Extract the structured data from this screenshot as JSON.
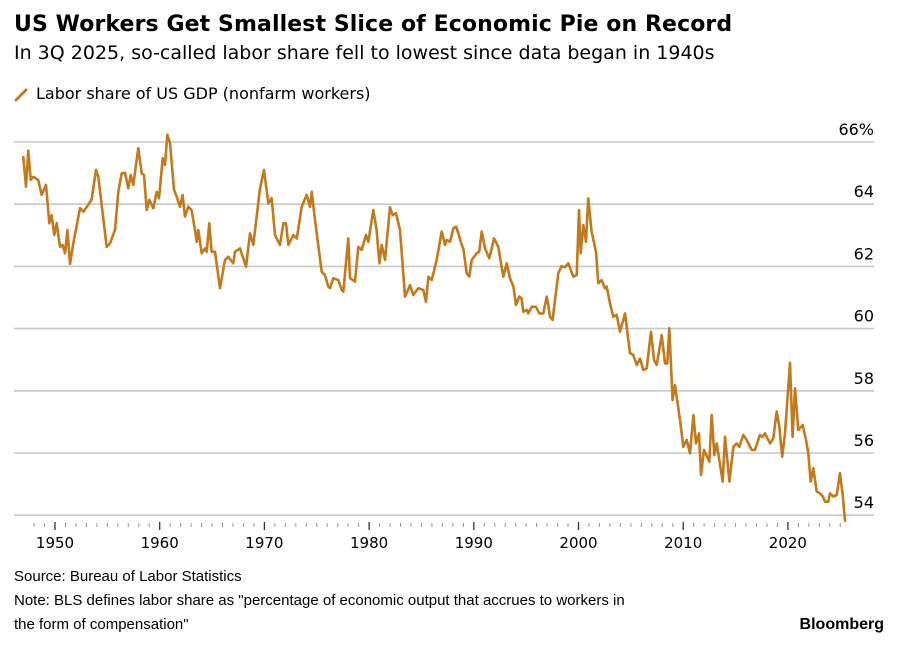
{
  "title": "US Workers Get Smallest Slice of Economic Pie on Record",
  "subtitle": "In 3Q 2025, so-called labor share fell to lowest since data began in 1940s",
  "source": "Source: Bureau of Labor Statistics",
  "note_line1": "Note: BLS defines labor share as \"percentage of economic output that accrues to workers in",
  "note_line2": "the form of compensation\"",
  "brand": "Bloomberg",
  "colors": {
    "series": "#c27a1c",
    "grid": "#c8c8c8"
  },
  "chart_data": {
    "type": "line",
    "title": "US Workers Get Smallest Slice of Economic Pie on Record",
    "xlabel": "",
    "ylabel": "",
    "xlim": [
      1946.7,
      2026
    ],
    "ylim": [
      54,
      66
    ],
    "y_unit_suffix": "%",
    "y_axis_position": "right",
    "grid": true,
    "legend_position": "top-left",
    "x_ticks": [
      "1950",
      "1960",
      "1970",
      "1980",
      "1990",
      "2000",
      "2010",
      "2020"
    ],
    "y_ticks": [
      "66%",
      "64",
      "62",
      "60",
      "58",
      "56",
      "54"
    ],
    "series": [
      {
        "name": "Labor share of US GDP (nonfarm workers)",
        "points": [
          [
            1946.97,
            65.51
          ],
          [
            1947.23,
            64.56
          ],
          [
            1947.45,
            65.72
          ],
          [
            1947.68,
            64.78
          ],
          [
            1947.93,
            64.88
          ],
          [
            1948.4,
            64.78
          ],
          [
            1948.73,
            64.3
          ],
          [
            1949.14,
            64.62
          ],
          [
            1949.46,
            63.39
          ],
          [
            1949.68,
            63.65
          ],
          [
            1949.93,
            63.01
          ],
          [
            1950.16,
            63.39
          ],
          [
            1950.48,
            62.63
          ],
          [
            1950.73,
            62.69
          ],
          [
            1950.96,
            62.42
          ],
          [
            1951.18,
            63.17
          ],
          [
            1951.43,
            62.08
          ],
          [
            1951.75,
            62.74
          ],
          [
            1952.39,
            63.87
          ],
          [
            1952.71,
            63.76
          ],
          [
            1953.5,
            64.14
          ],
          [
            1953.92,
            65.1
          ],
          [
            1954.14,
            64.88
          ],
          [
            1954.94,
            62.63
          ],
          [
            1955.25,
            62.74
          ],
          [
            1955.73,
            63.17
          ],
          [
            1956.05,
            64.4
          ],
          [
            1956.37,
            64.99
          ],
          [
            1956.69,
            65.01
          ],
          [
            1957.0,
            64.51
          ],
          [
            1957.23,
            64.94
          ],
          [
            1957.48,
            64.62
          ],
          [
            1957.96,
            65.8
          ],
          [
            1958.28,
            64.99
          ],
          [
            1958.5,
            64.94
          ],
          [
            1958.76,
            63.81
          ],
          [
            1959.01,
            64.14
          ],
          [
            1959.39,
            63.87
          ],
          [
            1959.71,
            64.4
          ],
          [
            1959.93,
            64.19
          ],
          [
            1960.29,
            65.48
          ],
          [
            1960.51,
            65.26
          ],
          [
            1960.73,
            66.23
          ],
          [
            1960.98,
            65.96
          ],
          [
            1961.37,
            64.46
          ],
          [
            1961.62,
            64.24
          ],
          [
            1961.94,
            63.92
          ],
          [
            1962.19,
            64.3
          ],
          [
            1962.42,
            63.6
          ],
          [
            1962.73,
            63.92
          ],
          [
            1963.05,
            63.81
          ],
          [
            1963.37,
            63.17
          ],
          [
            1963.53,
            62.79
          ],
          [
            1963.69,
            63.17
          ],
          [
            1964.01,
            62.42
          ],
          [
            1964.33,
            62.58
          ],
          [
            1964.49,
            62.47
          ],
          [
            1964.74,
            63.39
          ],
          [
            1964.96,
            62.47
          ],
          [
            1965.28,
            62.47
          ],
          [
            1965.76,
            61.3
          ],
          [
            1966.24,
            62.21
          ],
          [
            1966.55,
            62.31
          ],
          [
            1967.03,
            62.1
          ],
          [
            1967.19,
            62.47
          ],
          [
            1967.67,
            62.58
          ],
          [
            1968.24,
            61.99
          ],
          [
            1968.62,
            63.06
          ],
          [
            1968.94,
            62.69
          ],
          [
            1969.58,
            64.51
          ],
          [
            1969.96,
            65.1
          ],
          [
            1970.37,
            64.03
          ],
          [
            1970.7,
            64.19
          ],
          [
            1971.01,
            63.01
          ],
          [
            1971.49,
            62.69
          ],
          [
            1971.81,
            63.39
          ],
          [
            1972.06,
            63.39
          ],
          [
            1972.28,
            62.69
          ],
          [
            1972.76,
            63.01
          ],
          [
            1973.09,
            62.9
          ],
          [
            1973.56,
            63.92
          ],
          [
            1974.04,
            64.3
          ],
          [
            1974.36,
            63.92
          ],
          [
            1974.52,
            64.4
          ],
          [
            1974.83,
            63.49
          ],
          [
            1975.47,
            61.83
          ],
          [
            1975.79,
            61.72
          ],
          [
            1976.1,
            61.35
          ],
          [
            1976.27,
            61.3
          ],
          [
            1976.58,
            61.62
          ],
          [
            1977.06,
            61.56
          ],
          [
            1977.38,
            61.24
          ],
          [
            1977.54,
            61.19
          ],
          [
            1978.01,
            62.9
          ],
          [
            1978.18,
            61.62
          ],
          [
            1978.65,
            61.51
          ],
          [
            1978.97,
            62.63
          ],
          [
            1979.29,
            62.53
          ],
          [
            1979.7,
            63.01
          ],
          [
            1979.92,
            62.79
          ],
          [
            1980.4,
            63.81
          ],
          [
            1980.72,
            63.17
          ],
          [
            1980.98,
            62.1
          ],
          [
            1981.2,
            62.69
          ],
          [
            1981.52,
            62.21
          ],
          [
            1982.0,
            63.9
          ],
          [
            1982.25,
            63.65
          ],
          [
            1982.57,
            63.71
          ],
          [
            1982.95,
            63.17
          ],
          [
            1983.43,
            61.03
          ],
          [
            1983.91,
            61.4
          ],
          [
            1984.22,
            61.08
          ],
          [
            1984.7,
            61.3
          ],
          [
            1985.18,
            61.24
          ],
          [
            1985.43,
            60.86
          ],
          [
            1985.66,
            61.67
          ],
          [
            1985.98,
            61.56
          ],
          [
            1986.46,
            62.21
          ],
          [
            1986.93,
            63.12
          ],
          [
            1987.25,
            62.69
          ],
          [
            1987.41,
            62.85
          ],
          [
            1987.73,
            62.79
          ],
          [
            1988.04,
            63.22
          ],
          [
            1988.3,
            63.28
          ],
          [
            1988.52,
            63.06
          ],
          [
            1988.84,
            62.69
          ],
          [
            1989.0,
            62.58
          ],
          [
            1989.32,
            61.78
          ],
          [
            1989.57,
            61.67
          ],
          [
            1989.8,
            62.21
          ],
          [
            1990.28,
            62.42
          ],
          [
            1990.52,
            62.47
          ],
          [
            1990.75,
            63.12
          ],
          [
            1991.07,
            62.58
          ],
          [
            1991.48,
            62.26
          ],
          [
            1991.93,
            62.9
          ],
          [
            1992.34,
            62.63
          ],
          [
            1992.82,
            61.67
          ],
          [
            1993.14,
            62.1
          ],
          [
            1993.46,
            61.62
          ],
          [
            1993.78,
            61.35
          ],
          [
            1994.03,
            60.76
          ],
          [
            1994.35,
            61.03
          ],
          [
            1994.57,
            60.97
          ],
          [
            1994.73,
            60.54
          ],
          [
            1995.05,
            60.6
          ],
          [
            1995.21,
            60.49
          ],
          [
            1995.53,
            60.7
          ],
          [
            1995.94,
            60.7
          ],
          [
            1996.26,
            60.49
          ],
          [
            1996.64,
            60.49
          ],
          [
            1996.96,
            61.03
          ],
          [
            1997.12,
            60.76
          ],
          [
            1997.28,
            60.38
          ],
          [
            1997.53,
            60.28
          ],
          [
            1998.07,
            61.78
          ],
          [
            1998.39,
            62.01
          ],
          [
            1998.71,
            61.97
          ],
          [
            1999.03,
            62.1
          ],
          [
            1999.5,
            61.67
          ],
          [
            1999.83,
            61.72
          ],
          [
            2000.05,
            63.81
          ],
          [
            2000.21,
            62.42
          ],
          [
            2000.46,
            63.33
          ],
          [
            2000.72,
            62.79
          ],
          [
            2000.93,
            64.19
          ],
          [
            2001.25,
            63.12
          ],
          [
            2001.67,
            62.47
          ],
          [
            2001.89,
            61.46
          ],
          [
            2002.21,
            61.56
          ],
          [
            2002.53,
            61.3
          ],
          [
            2002.69,
            61.35
          ],
          [
            2003.01,
            60.81
          ],
          [
            2003.32,
            60.38
          ],
          [
            2003.65,
            60.44
          ],
          [
            2003.96,
            59.9
          ],
          [
            2004.44,
            60.49
          ],
          [
            2004.92,
            59.21
          ],
          [
            2005.23,
            59.15
          ],
          [
            2005.56,
            58.83
          ],
          [
            2005.87,
            59.04
          ],
          [
            2006.19,
            58.67
          ],
          [
            2006.51,
            58.72
          ],
          [
            2006.92,
            59.9
          ],
          [
            2007.21,
            58.99
          ],
          [
            2007.47,
            58.83
          ],
          [
            2007.95,
            59.79
          ],
          [
            2008.26,
            58.88
          ],
          [
            2008.48,
            58.88
          ],
          [
            2008.67,
            60.01
          ],
          [
            2008.99,
            57.7
          ],
          [
            2009.22,
            58.19
          ],
          [
            2009.69,
            57.06
          ],
          [
            2010.01,
            56.2
          ],
          [
            2010.33,
            56.42
          ],
          [
            2010.65,
            55.99
          ],
          [
            2010.97,
            57.22
          ],
          [
            2011.22,
            56.31
          ],
          [
            2011.51,
            56.63
          ],
          [
            2011.7,
            55.29
          ],
          [
            2011.99,
            56.1
          ],
          [
            2012.49,
            55.72
          ],
          [
            2012.72,
            57.22
          ],
          [
            2012.97,
            55.94
          ],
          [
            2013.2,
            56.31
          ],
          [
            2013.77,
            55.08
          ],
          [
            2013.99,
            56.52
          ],
          [
            2014.41,
            55.08
          ],
          [
            2014.79,
            56.2
          ],
          [
            2015.11,
            56.31
          ],
          [
            2015.36,
            56.2
          ],
          [
            2015.74,
            56.58
          ],
          [
            2016.06,
            56.42
          ],
          [
            2016.54,
            56.1
          ],
          [
            2016.86,
            56.1
          ],
          [
            2017.33,
            56.58
          ],
          [
            2017.59,
            56.52
          ],
          [
            2017.81,
            56.63
          ],
          [
            2018.29,
            56.31
          ],
          [
            2018.61,
            56.47
          ],
          [
            2018.93,
            57.33
          ],
          [
            2019.18,
            56.85
          ],
          [
            2019.46,
            55.88
          ],
          [
            2019.72,
            56.63
          ],
          [
            2020.2,
            58.9
          ],
          [
            2020.45,
            56.52
          ],
          [
            2020.68,
            58.08
          ],
          [
            2020.99,
            56.74
          ],
          [
            2021.41,
            56.9
          ],
          [
            2021.73,
            56.42
          ],
          [
            2021.95,
            55.99
          ],
          [
            2022.18,
            55.08
          ],
          [
            2022.43,
            55.51
          ],
          [
            2022.75,
            54.76
          ],
          [
            2023.07,
            54.7
          ],
          [
            2023.33,
            54.6
          ],
          [
            2023.55,
            54.43
          ],
          [
            2023.86,
            54.43
          ],
          [
            2024.02,
            54.7
          ],
          [
            2024.34,
            54.6
          ],
          [
            2024.66,
            54.65
          ],
          [
            2024.98,
            55.35
          ],
          [
            2025.23,
            54.65
          ],
          [
            2025.45,
            53.82
          ]
        ]
      }
    ]
  }
}
